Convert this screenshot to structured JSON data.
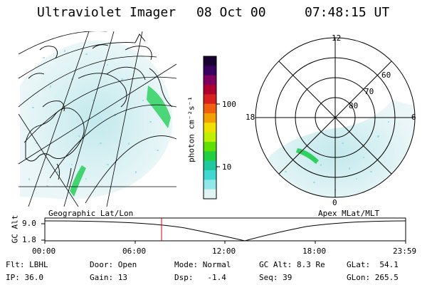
{
  "header": {
    "instrument": "Ultraviolet Imager",
    "date": "08 Oct 00",
    "time": "07:48:15 UT"
  },
  "colorbar": {
    "unit_label": "photon cm⁻²s⁻¹",
    "ticks": [
      "100",
      "10"
    ],
    "colors": [
      "#1a0030",
      "#3a0060",
      "#800060",
      "#b00030",
      "#d82020",
      "#f06010",
      "#f0a000",
      "#f0e000",
      "#c0f000",
      "#60e000",
      "#20d040",
      "#20c8a0",
      "#40d8d0",
      "#90e8e8",
      "#e0f4f4"
    ]
  },
  "geo_map": {
    "label": "Geographic Lat/Lon"
  },
  "polar_plot": {
    "label": "Apex MLat/MLT",
    "mlt_labels": [
      "12",
      "18",
      "6",
      "0"
    ],
    "lat_labels": [
      "60",
      "70",
      "80"
    ]
  },
  "altitude_plot": {
    "ylabel": "GC Alt",
    "yticks": [
      "9.0",
      "1.8"
    ],
    "xticks": [
      "00:00",
      "06:00",
      "12:00",
      "18:00",
      "23:59"
    ]
  },
  "info": {
    "row1": [
      {
        "label": "Flt:",
        "value": "LBHL"
      },
      {
        "label": "Door:",
        "value": "Open"
      },
      {
        "label": "Mode:",
        "value": "Normal"
      },
      {
        "label": "GC Alt:",
        "value": "8.3 Re"
      },
      {
        "label": "GLat:",
        "value": "54.1"
      }
    ],
    "row2": [
      {
        "label": "IP:",
        "value": "36.0"
      },
      {
        "label": "Gain:",
        "value": "13"
      },
      {
        "label": "Dsp:",
        "value": "-1.4"
      },
      {
        "label": "Seq:",
        "value": "39"
      },
      {
        "label": "GLon:",
        "value": "265.5"
      }
    ]
  }
}
